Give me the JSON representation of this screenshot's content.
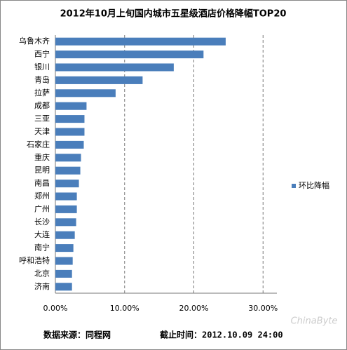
{
  "chart_data": {
    "type": "bar",
    "orientation": "horizontal",
    "title": "2012年10月上旬国内城市五星级酒店价格降幅TOP20",
    "categories": [
      "乌鲁木齐",
      "西宁",
      "银川",
      "青岛",
      "拉萨",
      "成都",
      "三亚",
      "天津",
      "石家庄",
      "重庆",
      "昆明",
      "南昌",
      "郑州",
      "广州",
      "长沙",
      "大连",
      "南宁",
      "呼和浩特",
      "北京",
      "济南"
    ],
    "series": [
      {
        "name": "环比降幅",
        "color": "#4a7ebb",
        "values": [
          24.6,
          21.4,
          17.1,
          12.6,
          8.7,
          4.5,
          4.2,
          4.2,
          4.1,
          3.7,
          3.6,
          3.4,
          3.1,
          3.1,
          3.0,
          2.8,
          2.6,
          2.5,
          2.4,
          2.4
        ]
      }
    ],
    "xlim": [
      0,
      32
    ],
    "xticks": [
      {
        "value": 0,
        "label": "0.00%"
      },
      {
        "value": 10,
        "label": "10.00%"
      },
      {
        "value": 20,
        "label": "20.00%"
      },
      {
        "value": 30,
        "label": "30.00%"
      }
    ],
    "grid": true,
    "legend": "right",
    "source": "数据来源：同程网",
    "cutoff": "截止时间：2012.10.09 24:00",
    "watermark": "ChinaByte"
  }
}
